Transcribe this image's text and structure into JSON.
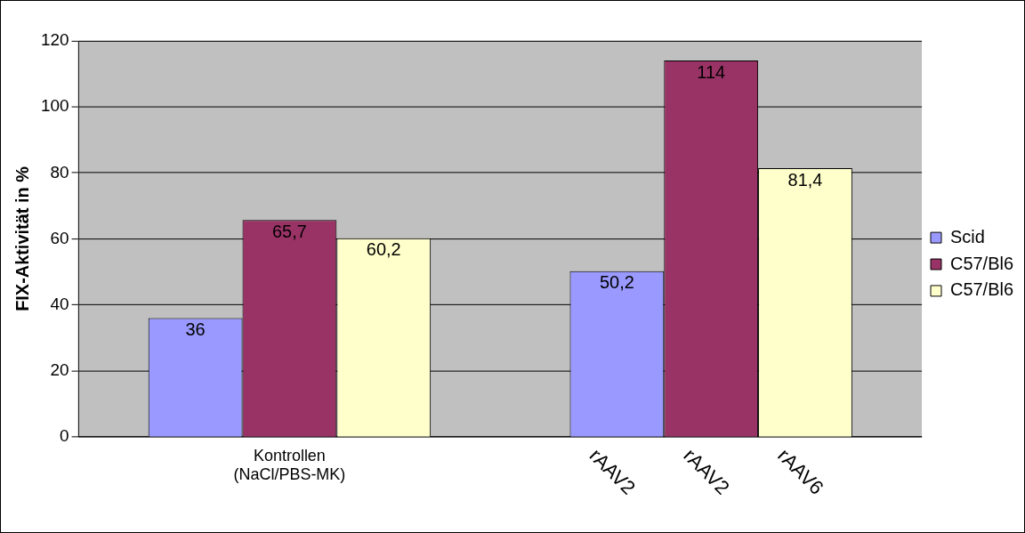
{
  "chart_data": {
    "type": "bar",
    "ylabel": "FIX-Aktivität in %",
    "categories": [
      "Kontrollen\n(NaCl/PBS-MK)",
      null
    ],
    "series": [
      {
        "name": "Scid",
        "color": "#9999ff",
        "values": [
          36,
          50.2
        ],
        "value_labels": [
          "36",
          "50,2"
        ]
      },
      {
        "name": "C57/Bl6",
        "color": "#993366",
        "values": [
          65.7,
          114
        ],
        "value_labels": [
          "65,7",
          "114"
        ]
      },
      {
        "name": "C57/Bl6",
        "color": "#ffffcc",
        "values": [
          60.2,
          81.4
        ],
        "value_labels": [
          "60,2",
          "81,4"
        ]
      }
    ],
    "ylim": [
      0,
      120
    ],
    "yticks": [
      0,
      20,
      40,
      60,
      80,
      100,
      120
    ],
    "grid": "y",
    "legend": "right",
    "annotations": [
      "rAAV2",
      "rAAV2",
      "rAAV6"
    ]
  }
}
